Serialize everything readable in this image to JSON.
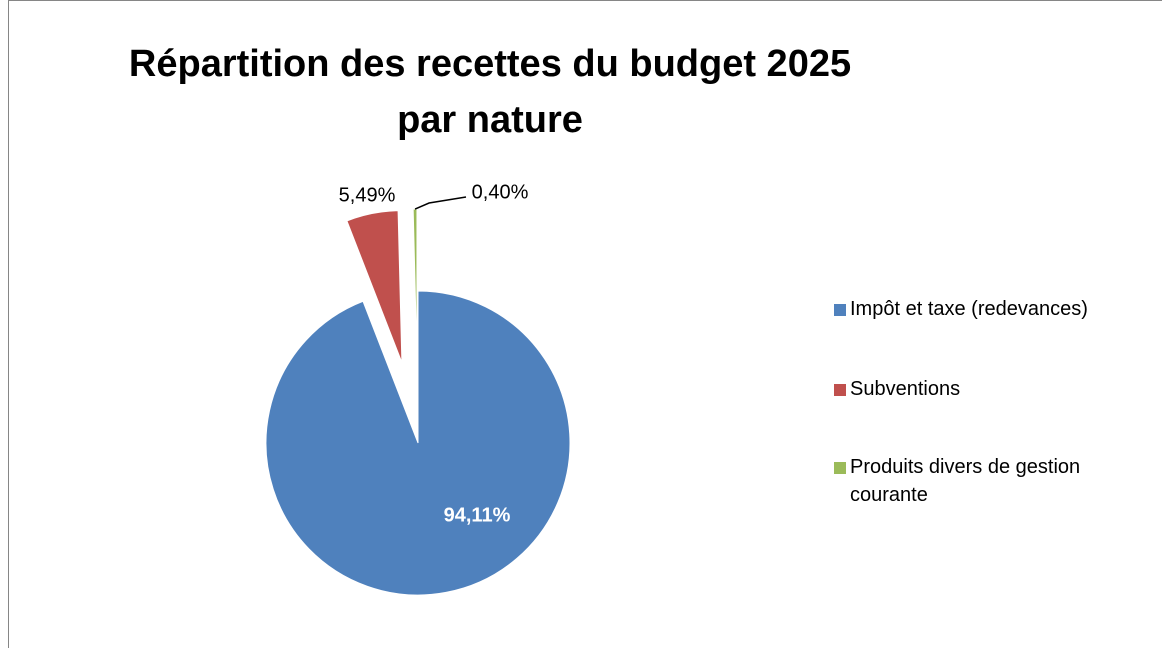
{
  "chart_data": {
    "type": "pie",
    "title": "Répartition des recettes du budget 2025 par nature",
    "categories": [
      "Impôt et taxe (redevances)",
      "Subventions",
      "Produits divers de gestion courante"
    ],
    "values": [
      94.11,
      5.49,
      0.4
    ],
    "value_labels": [
      "94,11%",
      "5,49%",
      "0,40%"
    ],
    "colors": [
      "#4f81bd",
      "#c0504d",
      "#9bbb59"
    ],
    "legend": "right"
  }
}
